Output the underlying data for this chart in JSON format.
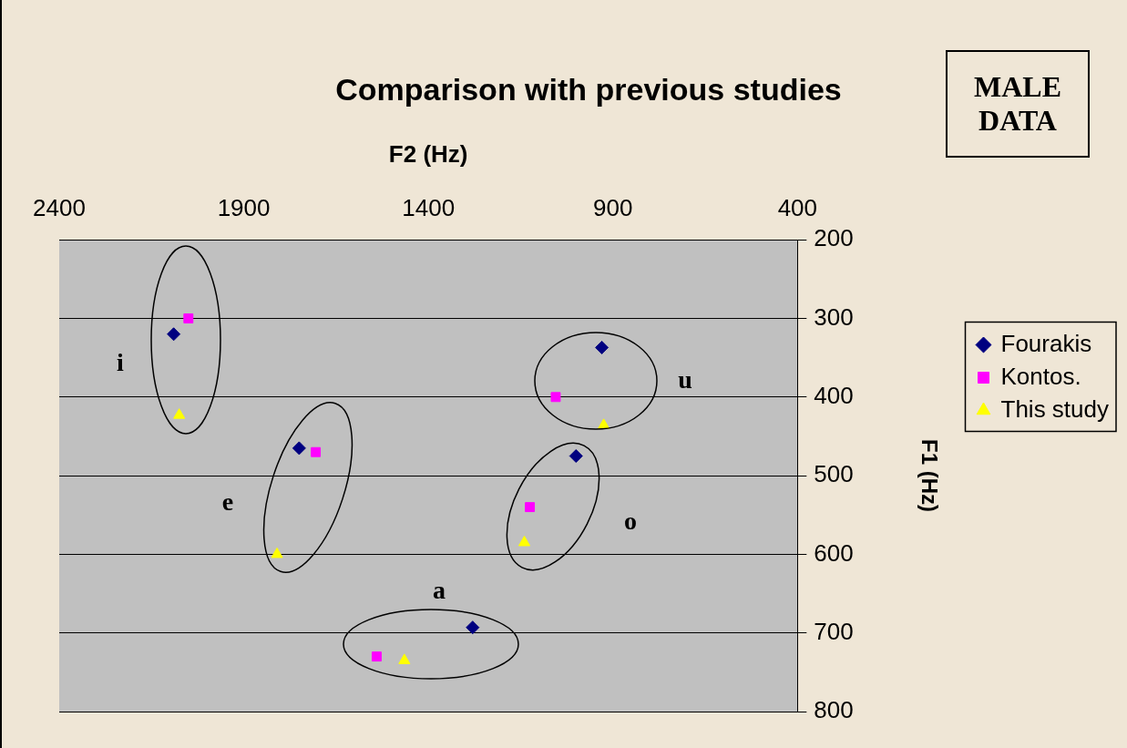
{
  "chart_data": {
    "type": "scatter",
    "title": "Comparison with previous studies",
    "xlabel": "F2 (Hz)",
    "ylabel": "F1 (Hz)",
    "xlim": [
      2400,
      400
    ],
    "xticks": [
      2400,
      1900,
      1400,
      900,
      400
    ],
    "ylim": [
      800,
      200
    ],
    "yticks": [
      200,
      300,
      400,
      500,
      600,
      700,
      800
    ],
    "grid": "y",
    "legend": "right",
    "series": [
      {
        "name": "Fourakis",
        "color": "#000080",
        "marker": "diamond",
        "x": [
          2090,
          1750,
          1280,
          1000,
          930
        ],
        "values": [
          320,
          465,
          693,
          475,
          337
        ]
      },
      {
        "name": "Kontos.",
        "color": "#ff00ff",
        "marker": "square",
        "x": [
          2050,
          1705,
          1540,
          1125,
          1055
        ],
        "values": [
          300,
          470,
          730,
          540,
          400
        ]
      },
      {
        "name": "This study",
        "color": "#ffff00",
        "marker": "triangle",
        "x": [
          2075,
          1810,
          1465,
          1140,
          925
        ],
        "values": [
          423,
          600,
          735,
          585,
          436
        ]
      }
    ],
    "annotations": [
      "i",
      "e",
      "a",
      "o",
      "u",
      "MALE DATA"
    ]
  }
}
